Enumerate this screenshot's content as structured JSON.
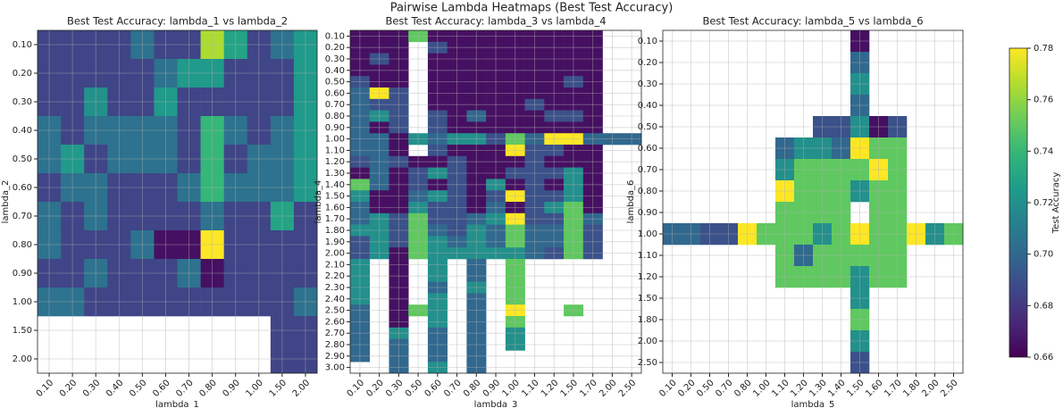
{
  "figure": {
    "title": "Pairwise Lambda Heatmaps (Best Test Accuracy)",
    "colormap": "viridis",
    "colorbar": {
      "label": "Test Accuracy",
      "lim": [
        0.66,
        0.78
      ],
      "ticks": [
        0.66,
        0.68,
        {
          "value": 0.7,
          "label": "0.70"
        },
        0.72,
        0.74,
        0.76,
        0.78
      ]
    }
  },
  "chart_data": [
    {
      "type": "heatmap",
      "title": "Best Test Accuracy: lambda_1 vs lambda_2",
      "x_label": "lambda_1",
      "y_label": "lambda_2",
      "grid": true,
      "x": [
        "0.10",
        "0.20",
        "0.30",
        "0.40",
        "0.50",
        "0.60",
        "0.70",
        "0.80",
        "0.90",
        "1.00",
        "1.50",
        "2.00"
      ],
      "y": [
        "0.10",
        "0.20",
        "0.30",
        "0.40",
        "0.50",
        "0.60",
        "0.70",
        "0.80",
        "0.90",
        "1.00",
        "1.50",
        "2.00"
      ],
      "values": [
        [
          0.685,
          0.685,
          0.685,
          0.685,
          0.705,
          0.685,
          0.685,
          0.765,
          0.73,
          0.685,
          0.705,
          0.725
        ],
        [
          0.685,
          0.685,
          0.685,
          0.685,
          0.685,
          0.705,
          0.725,
          0.725,
          0.685,
          0.685,
          0.685,
          0.725
        ],
        [
          0.685,
          0.685,
          0.72,
          0.685,
          0.685,
          0.725,
          0.685,
          0.685,
          0.685,
          0.685,
          0.685,
          0.725
        ],
        [
          0.705,
          0.685,
          0.705,
          0.705,
          0.705,
          0.705,
          0.685,
          0.74,
          0.705,
          0.685,
          0.705,
          0.725
        ],
        [
          0.705,
          0.725,
          0.685,
          0.705,
          0.705,
          0.705,
          0.685,
          0.74,
          0.685,
          0.705,
          0.705,
          0.725
        ],
        [
          0.685,
          0.705,
          0.705,
          0.685,
          0.685,
          0.685,
          0.705,
          0.74,
          0.705,
          0.705,
          0.705,
          0.725
        ],
        [
          0.705,
          0.685,
          0.705,
          0.685,
          0.685,
          0.685,
          0.685,
          0.705,
          0.685,
          0.685,
          0.73,
          0.685
        ],
        [
          0.705,
          0.685,
          0.685,
          0.685,
          0.705,
          0.665,
          0.665,
          0.78,
          0.685,
          0.685,
          0.685,
          0.685
        ],
        [
          0.685,
          0.685,
          0.705,
          0.685,
          0.685,
          0.685,
          0.705,
          0.665,
          0.685,
          0.685,
          0.685,
          0.685
        ],
        [
          0.705,
          0.705,
          0.685,
          0.685,
          0.685,
          0.685,
          0.685,
          0.685,
          0.685,
          0.685,
          0.685,
          0.705
        ],
        [
          null,
          null,
          null,
          null,
          null,
          null,
          null,
          null,
          null,
          null,
          0.685,
          0.685
        ],
        [
          null,
          null,
          null,
          null,
          null,
          null,
          null,
          null,
          null,
          null,
          0.685,
          0.685
        ]
      ]
    },
    {
      "type": "heatmap",
      "title": "Best Test Accuracy: lambda_3 vs lambda_4",
      "x_label": "lambda_3",
      "y_label": "lambda_4",
      "grid": true,
      "x": [
        "0.10",
        "0.20",
        "0.30",
        "0.50",
        "0.60",
        "0.70",
        "0.80",
        "0.90",
        "1.00",
        "1.10",
        "1.20",
        "1.50",
        "1.70",
        "2.00",
        "2.50"
      ],
      "y": [
        "0.10",
        "0.20",
        "0.30",
        "0.40",
        "0.50",
        "0.60",
        "0.70",
        "0.80",
        "0.90",
        "1.00",
        "1.10",
        "1.20",
        "1.30",
        "1.40",
        "1.50",
        "1.60",
        "1.70",
        "1.80",
        "1.90",
        "2.00",
        "2.10",
        "2.20",
        "2.30",
        "2.40",
        "2.50",
        "2.60",
        "2.70",
        "2.80",
        "2.90",
        "3.00"
      ],
      "values": [
        [
          0.665,
          0.665,
          0.665,
          0.75,
          0.665,
          0.665,
          0.665,
          0.665,
          0.665,
          0.665,
          0.665,
          0.665,
          0.665,
          null,
          null
        ],
        [
          0.665,
          0.665,
          0.665,
          null,
          0.69,
          0.665,
          0.665,
          0.665,
          0.665,
          0.665,
          0.665,
          0.665,
          0.665,
          null,
          null
        ],
        [
          0.665,
          0.69,
          0.665,
          null,
          0.665,
          0.665,
          0.665,
          0.665,
          0.665,
          0.665,
          0.665,
          0.665,
          0.665,
          null,
          null
        ],
        [
          0.665,
          0.665,
          0.665,
          null,
          0.665,
          0.665,
          0.665,
          0.665,
          0.665,
          0.665,
          0.665,
          0.665,
          0.665,
          null,
          null
        ],
        [
          0.69,
          0.665,
          0.665,
          null,
          0.665,
          0.665,
          0.665,
          0.665,
          0.665,
          0.665,
          0.665,
          0.69,
          0.665,
          null,
          null
        ],
        [
          0.7,
          0.78,
          0.69,
          null,
          0.665,
          0.665,
          0.665,
          0.665,
          0.665,
          0.665,
          0.665,
          0.665,
          0.665,
          null,
          null
        ],
        [
          0.7,
          0.69,
          0.69,
          null,
          0.665,
          0.665,
          0.665,
          0.665,
          0.665,
          0.69,
          0.665,
          0.665,
          0.665,
          null,
          null
        ],
        [
          0.7,
          0.72,
          0.69,
          null,
          0.69,
          0.665,
          0.7,
          0.665,
          0.665,
          0.665,
          0.69,
          0.69,
          0.665,
          null,
          null
        ],
        [
          0.7,
          0.665,
          0.69,
          null,
          0.69,
          0.665,
          0.665,
          0.665,
          0.665,
          0.665,
          0.665,
          0.665,
          0.665,
          null,
          null
        ],
        [
          0.7,
          0.7,
          0.665,
          0.72,
          0.7,
          0.72,
          0.72,
          0.69,
          0.75,
          0.7,
          0.78,
          0.78,
          0.7,
          0.7,
          0.7
        ],
        [
          0.7,
          0.7,
          0.665,
          null,
          0.69,
          0.665,
          0.665,
          0.665,
          0.78,
          0.69,
          0.69,
          0.665,
          0.665,
          null,
          null
        ],
        [
          0.69,
          0.7,
          0.69,
          0.665,
          0.665,
          0.69,
          0.665,
          0.665,
          0.665,
          0.69,
          0.665,
          0.665,
          0.665,
          null,
          null
        ],
        [
          0.665,
          0.7,
          0.665,
          0.69,
          0.72,
          0.69,
          0.665,
          0.665,
          0.69,
          0.69,
          0.69,
          0.72,
          0.665,
          null,
          null
        ],
        [
          0.75,
          0.7,
          0.665,
          0.69,
          0.665,
          0.69,
          0.665,
          0.72,
          0.665,
          0.69,
          0.665,
          0.72,
          0.665,
          null,
          null
        ],
        [
          0.72,
          0.665,
          0.665,
          0.7,
          0.72,
          0.69,
          0.665,
          0.69,
          0.78,
          0.69,
          0.69,
          0.72,
          0.665,
          null,
          null
        ],
        [
          0.7,
          0.665,
          0.665,
          0.72,
          0.69,
          0.69,
          0.665,
          0.7,
          0.665,
          0.69,
          0.72,
          0.75,
          0.665,
          null,
          null
        ],
        [
          0.7,
          0.72,
          0.69,
          0.75,
          0.69,
          0.69,
          0.7,
          0.72,
          0.78,
          0.69,
          0.69,
          0.75,
          0.7,
          null,
          null
        ],
        [
          0.72,
          0.72,
          0.69,
          0.75,
          0.7,
          0.69,
          0.72,
          0.7,
          0.75,
          0.7,
          0.7,
          0.75,
          0.69,
          null,
          null
        ],
        [
          0.69,
          0.72,
          0.69,
          0.75,
          0.72,
          0.7,
          0.72,
          0.7,
          0.75,
          0.7,
          0.7,
          0.75,
          0.69,
          null,
          null
        ],
        [
          0.69,
          0.72,
          0.665,
          0.75,
          0.72,
          0.72,
          0.72,
          0.72,
          0.72,
          0.7,
          0.69,
          0.75,
          0.69,
          null,
          null
        ],
        [
          0.72,
          null,
          0.665,
          null,
          0.72,
          null,
          0.7,
          null,
          0.75,
          null,
          null,
          null,
          null,
          null,
          null
        ],
        [
          0.72,
          null,
          0.665,
          null,
          0.72,
          null,
          0.7,
          null,
          0.75,
          null,
          null,
          null,
          null,
          null,
          null
        ],
        [
          0.72,
          null,
          0.665,
          null,
          0.7,
          null,
          0.72,
          null,
          0.75,
          null,
          null,
          null,
          null,
          null,
          null
        ],
        [
          0.72,
          null,
          0.665,
          null,
          0.72,
          null,
          0.7,
          null,
          0.75,
          null,
          null,
          null,
          null,
          null,
          null
        ],
        [
          0.7,
          null,
          0.665,
          0.75,
          0.72,
          null,
          0.7,
          null,
          0.78,
          null,
          null,
          0.75,
          null,
          null,
          null
        ],
        [
          0.7,
          null,
          0.665,
          null,
          0.72,
          null,
          0.7,
          null,
          0.75,
          null,
          null,
          null,
          null,
          null,
          null
        ],
        [
          0.7,
          null,
          0.72,
          null,
          0.7,
          null,
          0.7,
          null,
          0.72,
          null,
          null,
          null,
          null,
          null,
          null
        ],
        [
          0.7,
          null,
          0.7,
          null,
          0.7,
          null,
          0.7,
          null,
          0.72,
          null,
          null,
          null,
          null,
          null,
          null
        ],
        [
          0.7,
          null,
          0.7,
          null,
          0.7,
          null,
          0.7,
          null,
          null,
          null,
          null,
          null,
          null,
          null,
          null
        ],
        [
          null,
          null,
          0.7,
          null,
          0.72,
          null,
          0.7,
          null,
          null,
          null,
          null,
          null,
          null,
          null,
          null
        ]
      ]
    },
    {
      "type": "heatmap",
      "title": "Best Test Accuracy: lambda_5 vs lambda_6",
      "x_label": "lambda_5",
      "y_label": "lambda_6",
      "grid": true,
      "x": [
        "0.10",
        "0.20",
        "0.50",
        "0.70",
        "0.80",
        "1.00",
        "1.10",
        "1.20",
        "1.30",
        "1.40",
        "1.50",
        "1.60",
        "1.70",
        "1.80",
        "2.00",
        "2.50"
      ],
      "y": [
        "0.10",
        "0.20",
        "0.30",
        "0.40",
        "0.50",
        "0.60",
        "0.70",
        "0.80",
        "0.90",
        "1.00",
        "1.10",
        "1.20",
        "1.50",
        "1.80",
        "2.00",
        "2.50"
      ],
      "values": [
        [
          null,
          null,
          null,
          null,
          null,
          null,
          null,
          null,
          null,
          null,
          0.665,
          null,
          null,
          null,
          null,
          null
        ],
        [
          null,
          null,
          null,
          null,
          null,
          null,
          null,
          null,
          null,
          null,
          0.7,
          null,
          null,
          null,
          null,
          null
        ],
        [
          null,
          null,
          null,
          null,
          null,
          null,
          null,
          null,
          null,
          null,
          0.72,
          null,
          null,
          null,
          null,
          null
        ],
        [
          null,
          null,
          null,
          null,
          null,
          null,
          null,
          null,
          null,
          null,
          0.7,
          null,
          null,
          null,
          null,
          null
        ],
        [
          null,
          null,
          null,
          null,
          null,
          null,
          null,
          null,
          0.69,
          0.69,
          0.72,
          0.665,
          0.69,
          null,
          null,
          null
        ],
        [
          null,
          null,
          null,
          null,
          null,
          null,
          0.7,
          0.72,
          0.72,
          0.7,
          0.78,
          0.75,
          0.75,
          null,
          null,
          null
        ],
        [
          null,
          null,
          null,
          null,
          null,
          null,
          0.72,
          0.75,
          0.75,
          0.75,
          0.75,
          0.78,
          0.75,
          null,
          null,
          null
        ],
        [
          null,
          null,
          null,
          null,
          null,
          null,
          0.78,
          0.75,
          0.75,
          0.75,
          0.72,
          0.75,
          0.75,
          null,
          null,
          null
        ],
        [
          null,
          null,
          null,
          null,
          null,
          null,
          0.75,
          0.75,
          0.75,
          0.75,
          null,
          0.75,
          0.75,
          null,
          null,
          null
        ],
        [
          0.7,
          0.7,
          0.69,
          0.69,
          0.78,
          0.75,
          0.75,
          0.75,
          0.72,
          0.75,
          0.78,
          0.75,
          0.75,
          0.78,
          0.72,
          0.75
        ],
        [
          null,
          null,
          null,
          null,
          null,
          null,
          0.75,
          0.7,
          0.75,
          0.75,
          0.75,
          0.75,
          0.75,
          null,
          null,
          null
        ],
        [
          null,
          null,
          null,
          null,
          null,
          null,
          0.75,
          0.75,
          0.75,
          0.75,
          0.72,
          0.75,
          0.75,
          null,
          null,
          null
        ],
        [
          null,
          null,
          null,
          null,
          null,
          null,
          null,
          null,
          null,
          null,
          0.72,
          null,
          null,
          null,
          null,
          null
        ],
        [
          null,
          null,
          null,
          null,
          null,
          null,
          null,
          null,
          null,
          null,
          0.75,
          null,
          null,
          null,
          null,
          null
        ],
        [
          null,
          null,
          null,
          null,
          null,
          null,
          null,
          null,
          null,
          null,
          0.72,
          null,
          null,
          null,
          null,
          null
        ],
        [
          null,
          null,
          null,
          null,
          null,
          null,
          null,
          null,
          null,
          null,
          0.69,
          null,
          null,
          null,
          null,
          null
        ]
      ]
    }
  ]
}
